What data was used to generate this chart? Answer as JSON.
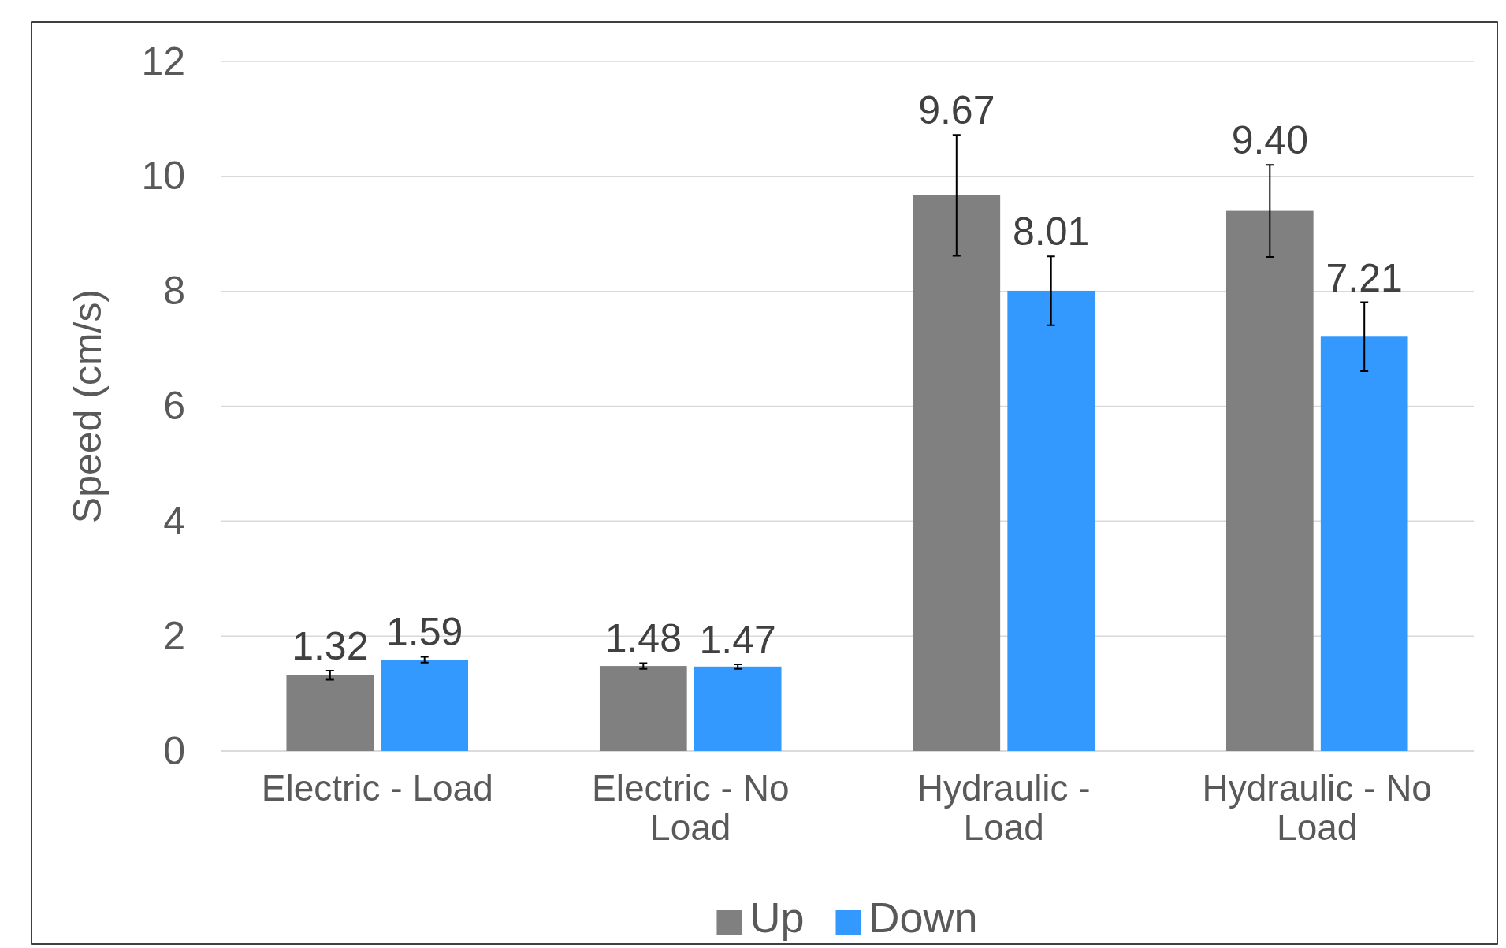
{
  "chart_data": {
    "type": "bar",
    "ylabel": "Speed (cm/s)",
    "categories": [
      "Electric - Load",
      "Electric - No Load",
      "Hydraulic - Load",
      "Hydraulic - No Load"
    ],
    "series": [
      {
        "name": "Up",
        "color": "#808080",
        "values": [
          1.32,
          1.48,
          9.67,
          9.4
        ],
        "errors": [
          0.08,
          0.05,
          1.05,
          0.8
        ],
        "value_labels": [
          "1.32",
          "1.48",
          "9.67",
          "9.40"
        ]
      },
      {
        "name": "Down",
        "color": "#3399ff",
        "values": [
          1.59,
          1.47,
          8.01,
          7.21
        ],
        "errors": [
          0.05,
          0.04,
          0.6,
          0.6
        ],
        "value_labels": [
          "1.59",
          "1.47",
          "8.01",
          "7.21"
        ]
      }
    ],
    "ylim": [
      0,
      12
    ],
    "yticks": [
      0,
      2,
      4,
      6,
      8,
      10,
      12
    ],
    "grid": "y",
    "legend": "bottom"
  }
}
